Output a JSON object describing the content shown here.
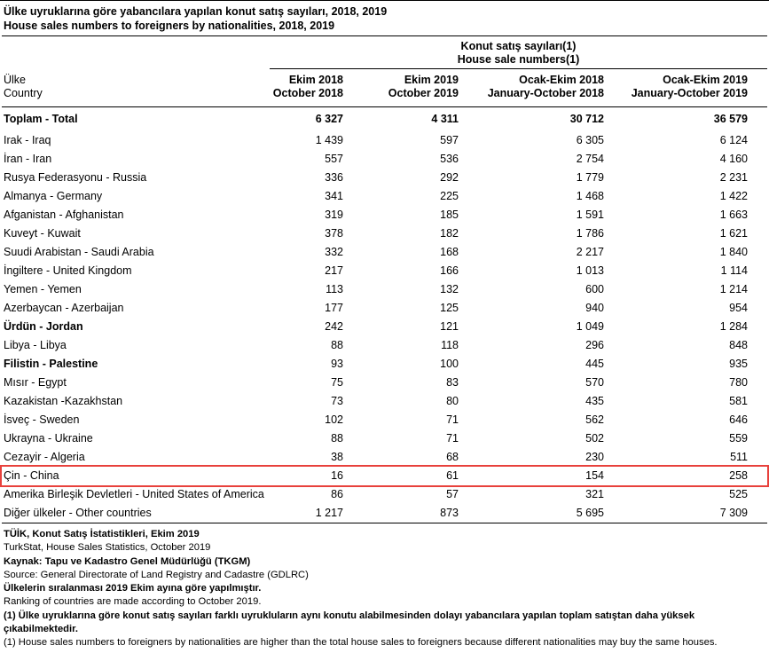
{
  "colors": {
    "highlight_red": "#e8413c",
    "line_black": "#000000",
    "text": "#000000",
    "background": "#ffffff"
  },
  "title": {
    "line1_tr": "Ülke uyruklarına göre yabancılara yapılan konut satış sayıları, 2018, 2019",
    "line2_en": "House sales numbers to foreigners by nationalities, 2018, 2019"
  },
  "table": {
    "group_header": {
      "tr": "Konut satış sayıları(1)",
      "en": "House sale numbers(1)"
    },
    "row_header": {
      "tr": "Ülke",
      "en": "Country"
    },
    "columns": [
      {
        "tr": "Ekim 2018",
        "en": "October 2018"
      },
      {
        "tr": "Ekim 2019",
        "en": "October 2019"
      },
      {
        "tr": "Ocak-Ekim 2018",
        "en": "January-October 2018"
      },
      {
        "tr": "Ocak-Ekim 2019",
        "en": "January-October 2019"
      }
    ],
    "rows": [
      {
        "name": "Toplam -  Total",
        "values": [
          "6 327",
          "4 311",
          "30 712",
          "36 579"
        ],
        "bold": true
      },
      {
        "name": "Irak - Iraq",
        "values": [
          "1 439",
          "597",
          "6 305",
          "6 124"
        ]
      },
      {
        "name": "İran - Iran",
        "values": [
          "557",
          "536",
          "2 754",
          "4 160"
        ]
      },
      {
        "name": "Rusya Federasyonu - Russia",
        "values": [
          "336",
          "292",
          "1 779",
          "2 231"
        ]
      },
      {
        "name": "Almanya - Germany",
        "values": [
          "341",
          "225",
          "1 468",
          "1 422"
        ]
      },
      {
        "name": "Afganistan - Afghanistan",
        "values": [
          "319",
          "185",
          "1 591",
          "1 663"
        ]
      },
      {
        "name": "Kuveyt - Kuwait",
        "values": [
          "378",
          "182",
          "1 786",
          "1 621"
        ]
      },
      {
        "name": "Suudi Arabistan - Saudi Arabia",
        "values": [
          "332",
          "168",
          "2 217",
          "1 840"
        ]
      },
      {
        "name": "İngiltere - United Kingdom",
        "values": [
          "217",
          "166",
          "1 013",
          "1 114"
        ]
      },
      {
        "name": "Yemen - Yemen",
        "values": [
          "113",
          "132",
          "600",
          "1 214"
        ]
      },
      {
        "name": "Azerbaycan - Azerbaijan",
        "values": [
          "177",
          "125",
          "940",
          "954"
        ]
      },
      {
        "name": "Ürdün - Jordan",
        "values": [
          "242",
          "121",
          "1 049",
          "1 284"
        ],
        "bold_label": true
      },
      {
        "name": "Libya - Libya",
        "values": [
          "88",
          "118",
          "296",
          "848"
        ]
      },
      {
        "name": "Filistin - Palestine",
        "values": [
          "93",
          "100",
          "445",
          "935"
        ],
        "bold_label": true
      },
      {
        "name": "Mısır - Egypt",
        "values": [
          "75",
          "83",
          "570",
          "780"
        ]
      },
      {
        "name": "Kazakistan -Kazakhstan",
        "values": [
          "73",
          "80",
          "435",
          "581"
        ]
      },
      {
        "name": "İsveç - Sweden",
        "values": [
          "102",
          "71",
          "562",
          "646"
        ]
      },
      {
        "name": "Ukrayna - Ukraine",
        "values": [
          "88",
          "71",
          "502",
          "559"
        ]
      },
      {
        "name": "Cezayir - Algeria",
        "values": [
          "38",
          "68",
          "230",
          "511"
        ]
      },
      {
        "name": "Çin - China",
        "values": [
          "16",
          "61",
          "154",
          "258"
        ],
        "highlight": true
      },
      {
        "name": "Amerika Birleşik Devletleri - United States of America",
        "values": [
          "86",
          "57",
          "321",
          "525"
        ]
      },
      {
        "name": "Diğer ülkeler - Other countries",
        "values": [
          "1 217",
          "873",
          "5 695",
          "7 309"
        ]
      }
    ]
  },
  "footnotes": [
    {
      "text": "TÜİK, Konut Satış İstatistikleri, Ekim 2019",
      "bold": true
    },
    {
      "text": "TurkStat, House Sales Statistics, October 2019",
      "bold": false
    },
    {
      "text": "Kaynak: Tapu ve Kadastro Genel Müdürlüğü (TKGM)",
      "bold": true
    },
    {
      "text": "Source: General Directorate of Land Registry and Cadastre (GDLRC)",
      "bold": false
    },
    {
      "text": "Ülkelerin sıralanması 2019 Ekim ayına göre yapılmıştır.",
      "bold": true
    },
    {
      "text": "Ranking of countries are made according to October 2019.",
      "bold": false
    },
    {
      "text": "(1) Ülke uyruklarına göre konut satış sayıları farklı uyrukluların aynı konutu alabilmesinden dolayı yabancılara yapılan toplam satıştan daha  yüksek çıkabilmektedir.",
      "bold": true
    },
    {
      "text": "(1) House sales numbers to foreigners by nationalities are higher than the total house sales to foreigners because different nationalities may buy the same houses.",
      "bold": false
    }
  ]
}
